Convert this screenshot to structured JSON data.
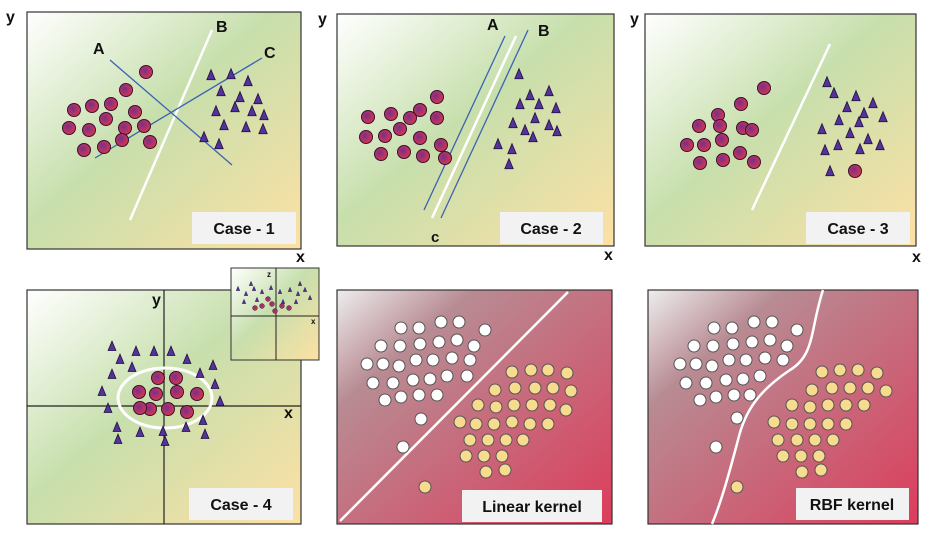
{
  "panels": {
    "case1": {
      "caption": "Case - 1",
      "y_label": "y",
      "x_label": "x",
      "line_labels": [
        "A",
        "B",
        "C"
      ]
    },
    "case2": {
      "caption": "Case - 2",
      "y_label": "y",
      "x_label": "x",
      "line_labels": [
        "A",
        "B",
        "c"
      ]
    },
    "case3": {
      "caption": "Case - 3",
      "y_label": "y",
      "x_label": "x"
    },
    "case4": {
      "caption": "Case - 4",
      "y_label": "y",
      "x_label": "x",
      "inset_labels": [
        "z",
        "x"
      ]
    },
    "linear": {
      "caption": "Linear kernel"
    },
    "rbf": {
      "caption": "RBF kernel"
    }
  },
  "colors": {
    "circle_fill": "#d2374f",
    "circle_core": "#7a2e8a",
    "triangle_fill": "#55329a",
    "white_point": "#ffffff",
    "yellow_point": "#f7dc8f",
    "boundary": "#ffffff",
    "blue_line": "#3b63b3",
    "red_gradient_end": "#dc3d5c"
  },
  "icons": {
    "class_a": "circle-marker",
    "class_b": "triangle-marker"
  }
}
